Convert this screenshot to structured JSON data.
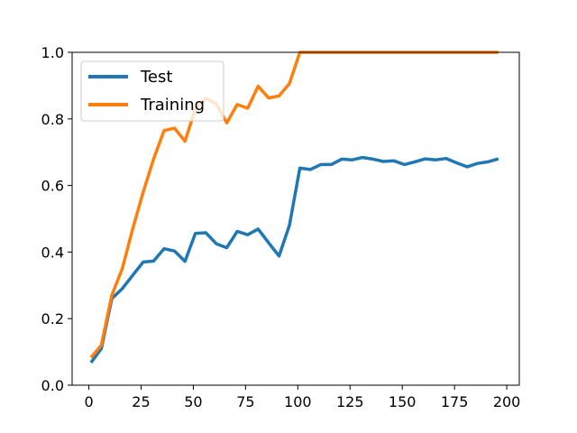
{
  "chart_data": {
    "type": "line",
    "title": "",
    "xlabel": "",
    "ylabel": "",
    "xlim": [
      -8,
      206
    ],
    "ylim": [
      0,
      1.0
    ],
    "xticks": [
      0,
      25,
      50,
      75,
      100,
      125,
      150,
      175,
      200
    ],
    "yticks": [
      0.0,
      0.2,
      0.4,
      0.6,
      0.8,
      1.0
    ],
    "xtick_labels": [
      "0",
      "25",
      "50",
      "75",
      "100",
      "125",
      "150",
      "175",
      "200"
    ],
    "ytick_labels": [
      "0.0",
      "0.2",
      "0.4",
      "0.6",
      "0.8",
      "1.0"
    ],
    "grid": false,
    "legend_position": "top-left",
    "series": [
      {
        "name": "Test",
        "color": "#1f77b4",
        "x": [
          1,
          6,
          11,
          16,
          21,
          26,
          31,
          36,
          41,
          46,
          51,
          56,
          61,
          66,
          71,
          76,
          81,
          86,
          91,
          96,
          101,
          106,
          111,
          116,
          121,
          126,
          131,
          136,
          141,
          146,
          151,
          156,
          161,
          166,
          171,
          176,
          181,
          186,
          191,
          196
        ],
        "values": [
          0.068,
          0.11,
          0.26,
          0.29,
          0.33,
          0.37,
          0.373,
          0.41,
          0.403,
          0.372,
          0.456,
          0.458,
          0.425,
          0.413,
          0.462,
          0.452,
          0.469,
          0.428,
          0.388,
          0.48,
          0.652,
          0.648,
          0.663,
          0.663,
          0.679,
          0.677,
          0.684,
          0.679,
          0.672,
          0.674,
          0.663,
          0.671,
          0.68,
          0.677,
          0.681,
          0.668,
          0.656,
          0.666,
          0.671,
          0.68
        ]
      },
      {
        "name": "Training",
        "color": "#ff7f0e",
        "x": [
          1,
          6,
          11,
          16,
          21,
          26,
          31,
          36,
          41,
          46,
          51,
          56,
          61,
          66,
          71,
          76,
          81,
          86,
          91,
          96,
          101,
          106,
          111,
          116,
          121,
          126,
          131,
          136,
          141,
          146,
          151,
          156,
          161,
          166,
          171,
          176,
          181,
          186,
          191,
          196
        ],
        "values": [
          0.083,
          0.12,
          0.27,
          0.35,
          0.47,
          0.58,
          0.68,
          0.765,
          0.772,
          0.733,
          0.83,
          0.862,
          0.845,
          0.788,
          0.843,
          0.832,
          0.898,
          0.863,
          0.869,
          0.906,
          1.0,
          1.0,
          1.0,
          1.0,
          1.0,
          1.0,
          1.0,
          1.0,
          1.0,
          1.0,
          1.0,
          1.0,
          1.0,
          1.0,
          1.0,
          1.0,
          1.0,
          1.0,
          1.0,
          1.0
        ]
      }
    ]
  }
}
